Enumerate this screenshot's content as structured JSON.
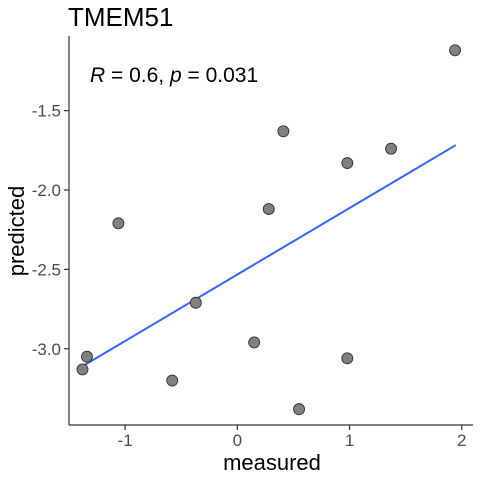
{
  "chart_data": {
    "type": "scatter",
    "title": "TMEM51",
    "xlabel": "measured",
    "ylabel": "predicted",
    "xlim": [
      -1.5,
      2.1
    ],
    "ylim": [
      -3.48,
      -1.03
    ],
    "x_ticks": [
      -1,
      0,
      1,
      2
    ],
    "x_tick_labels": [
      "-1",
      "0",
      "1",
      "2"
    ],
    "y_ticks": [
      -1.5,
      -2.0,
      -2.5,
      -3.0
    ],
    "y_tick_labels": [
      "-1.5",
      "-2.0",
      "-2.5",
      "-3.0"
    ],
    "grid": false,
    "points": [
      {
        "x": -1.38,
        "y": -3.13
      },
      {
        "x": -1.34,
        "y": -3.05
      },
      {
        "x": -1.06,
        "y": -2.21
      },
      {
        "x": -0.58,
        "y": -3.2
      },
      {
        "x": -0.37,
        "y": -2.71
      },
      {
        "x": 0.15,
        "y": -2.96
      },
      {
        "x": 0.28,
        "y": -2.12
      },
      {
        "x": 0.41,
        "y": -1.63
      },
      {
        "x": 0.55,
        "y": -3.38
      },
      {
        "x": 0.98,
        "y": -1.83
      },
      {
        "x": 0.98,
        "y": -3.06
      },
      {
        "x": 1.37,
        "y": -1.74
      },
      {
        "x": 1.94,
        "y": -1.12
      }
    ],
    "fit_line": {
      "x": [
        -1.38,
        1.94
      ],
      "y": [
        -3.11,
        -1.72
      ],
      "color": "#3366ff"
    },
    "point_color": "#808080",
    "annotation": {
      "r_label": "R",
      "r_value": " = 0.6, ",
      "p_label": "p",
      "p_value": " = 0.031"
    }
  }
}
